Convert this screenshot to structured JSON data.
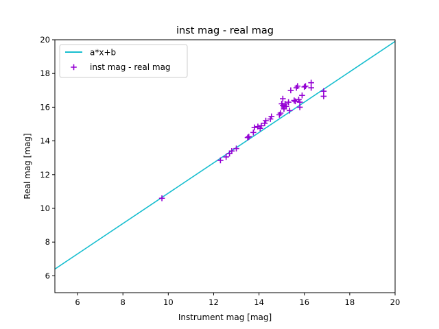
{
  "chart_data": {
    "type": "scatter",
    "title": "inst mag - real mag",
    "xlabel": "Instrument mag [mag]",
    "ylabel": "Real mag [mag]",
    "xlim": [
      5,
      20
    ],
    "ylim": [
      5,
      20
    ],
    "xticks": [
      6,
      8,
      10,
      12,
      14,
      16,
      18,
      20
    ],
    "yticks": [
      6,
      8,
      10,
      12,
      14,
      16,
      18,
      20
    ],
    "grid": false,
    "legend_position": "top-left",
    "series": [
      {
        "name": "a*x+b",
        "kind": "line",
        "color": "#17becf",
        "x": [
          5,
          20
        ],
        "y": [
          6.4,
          19.9
        ]
      },
      {
        "name": "inst mag - real mag",
        "kind": "scatter",
        "marker": "+",
        "color": "#9400d3",
        "x": [
          9.72,
          12.3,
          12.55,
          12.7,
          12.8,
          13.0,
          13.5,
          13.55,
          13.75,
          13.8,
          13.95,
          14.05,
          14.1,
          14.25,
          14.3,
          14.5,
          14.55,
          14.9,
          14.95,
          15.0,
          15.05,
          15.05,
          15.1,
          15.1,
          15.15,
          15.2,
          15.3,
          15.35,
          15.4,
          15.55,
          15.6,
          15.65,
          15.7,
          15.75,
          15.8,
          15.8,
          15.9,
          16.0,
          16.05,
          16.3,
          16.3,
          16.85,
          16.85
        ],
        "y": [
          10.6,
          12.85,
          13.05,
          13.25,
          13.4,
          13.55,
          14.2,
          14.25,
          14.5,
          14.8,
          14.85,
          14.75,
          14.9,
          15.05,
          15.2,
          15.3,
          15.45,
          15.55,
          15.65,
          16.2,
          16.1,
          16.5,
          15.9,
          16.0,
          16.2,
          16.05,
          16.3,
          15.8,
          17.0,
          16.4,
          16.35,
          17.15,
          17.25,
          16.45,
          16.0,
          16.3,
          16.7,
          17.2,
          17.25,
          17.15,
          17.45,
          16.65,
          16.95
        ]
      }
    ]
  }
}
